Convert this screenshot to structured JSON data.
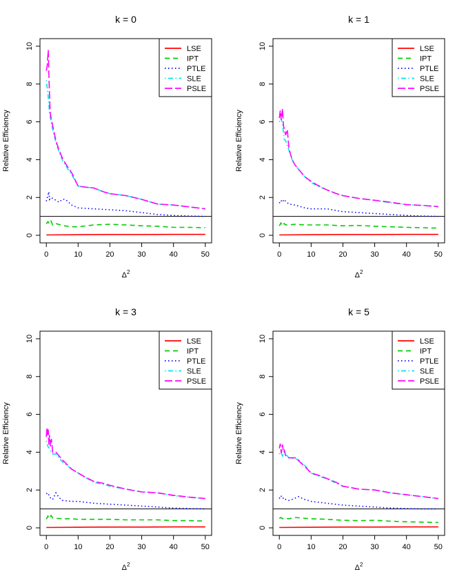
{
  "chart_data": [
    {
      "type": "line",
      "title": "k = 0",
      "xlabel": "Δ",
      "xlabel_superscript": "2",
      "ylabel": "Relative Efficiency",
      "xlim": [
        0,
        50
      ],
      "ylim": [
        0,
        10
      ],
      "xticks": [
        "0",
        "10",
        "20",
        "30",
        "40",
        "50"
      ],
      "yticks": [
        "0",
        "2",
        "4",
        "6",
        "8",
        "10"
      ],
      "reference_line_y": 1,
      "legend_position": "top-right",
      "series": [
        {
          "name": "LSE",
          "color": "#ff0000",
          "dash": "solid",
          "x": [
            0,
            10,
            20,
            30,
            40,
            50
          ],
          "y": [
            0.02,
            0.03,
            0.04,
            0.04,
            0.05,
            0.05
          ]
        },
        {
          "name": "IPT",
          "color": "#00cc00",
          "dash": "dashed",
          "x": [
            0,
            0.5,
            1,
            1.5,
            2,
            3,
            5,
            8,
            10,
            15,
            20,
            25,
            30,
            35,
            40,
            45,
            50
          ],
          "y": [
            0.6,
            0.72,
            0.6,
            0.75,
            0.55,
            0.62,
            0.52,
            0.45,
            0.45,
            0.55,
            0.58,
            0.55,
            0.5,
            0.48,
            0.42,
            0.42,
            0.4
          ]
        },
        {
          "name": "PTLE",
          "color": "#0000ff",
          "dash": "dotted",
          "x": [
            0,
            0.5,
            0.8,
            1,
            1.5,
            2,
            3,
            4,
            5,
            6,
            8,
            10,
            15,
            20,
            25,
            30,
            35,
            40,
            45,
            50
          ],
          "y": [
            1.8,
            2.1,
            2.3,
            1.9,
            2.0,
            1.95,
            1.85,
            1.75,
            1.9,
            1.9,
            1.6,
            1.45,
            1.4,
            1.35,
            1.3,
            1.2,
            1.1,
            1.05,
            1.02,
            1.0
          ]
        },
        {
          "name": "SLE",
          "color": "#00e5ee",
          "dash": "dotdash",
          "x": [
            0,
            0.5,
            1,
            1.5,
            2,
            3,
            4,
            5,
            6,
            8,
            10,
            12,
            15,
            18,
            20,
            25,
            30,
            35,
            40,
            45,
            50
          ],
          "y": [
            8.2,
            7.5,
            6.5,
            6.0,
            5.6,
            4.9,
            4.4,
            4.0,
            3.7,
            3.2,
            2.6,
            2.55,
            2.5,
            2.3,
            2.2,
            2.1,
            1.9,
            1.65,
            1.6,
            1.5,
            1.4
          ]
        },
        {
          "name": "PSLE",
          "color": "#ff00ff",
          "dash": "longdash",
          "x": [
            0,
            0.3,
            0.6,
            0.8,
            1,
            1.2,
            1.5,
            2,
            3,
            4,
            5,
            6,
            8,
            10,
            12,
            15,
            18,
            20,
            25,
            30,
            35,
            40,
            45,
            50
          ],
          "y": [
            8.7,
            9.0,
            9.8,
            8.5,
            7.5,
            6.5,
            6.2,
            5.8,
            5.0,
            4.5,
            4.1,
            3.8,
            3.3,
            2.6,
            2.55,
            2.5,
            2.3,
            2.2,
            2.1,
            1.9,
            1.65,
            1.6,
            1.5,
            1.4
          ]
        }
      ]
    },
    {
      "type": "line",
      "title": "k = 1",
      "xlabel": "Δ",
      "xlabel_superscript": "2",
      "ylabel": "Relative Efficiency",
      "xlim": [
        0,
        50
      ],
      "ylim": [
        0,
        10
      ],
      "xticks": [
        "0",
        "10",
        "20",
        "30",
        "40",
        "50"
      ],
      "yticks": [
        "0",
        "2",
        "4",
        "6",
        "8",
        "10"
      ],
      "reference_line_y": 1,
      "legend_position": "top-right",
      "series": [
        {
          "name": "LSE",
          "color": "#ff0000",
          "dash": "solid",
          "x": [
            0,
            10,
            20,
            30,
            40,
            50
          ],
          "y": [
            0.02,
            0.03,
            0.04,
            0.04,
            0.05,
            0.05
          ]
        },
        {
          "name": "IPT",
          "color": "#00cc00",
          "dash": "dashed",
          "x": [
            0,
            0.5,
            1,
            1.5,
            2,
            3,
            5,
            8,
            10,
            15,
            20,
            25,
            30,
            35,
            40,
            45,
            50
          ],
          "y": [
            0.5,
            0.65,
            0.5,
            0.62,
            0.55,
            0.55,
            0.58,
            0.55,
            0.55,
            0.55,
            0.5,
            0.52,
            0.48,
            0.45,
            0.42,
            0.4,
            0.38
          ]
        },
        {
          "name": "PTLE",
          "color": "#0000ff",
          "dash": "dotted",
          "x": [
            0,
            0.5,
            1,
            1.5,
            2,
            3,
            5,
            8,
            10,
            15,
            20,
            25,
            30,
            35,
            40,
            45,
            50
          ],
          "y": [
            1.7,
            1.85,
            1.75,
            1.9,
            1.8,
            1.65,
            1.6,
            1.45,
            1.4,
            1.4,
            1.25,
            1.2,
            1.15,
            1.1,
            1.05,
            1.02,
            1.0
          ]
        },
        {
          "name": "SLE",
          "color": "#00e5ee",
          "dash": "dotdash",
          "x": [
            0,
            0.5,
            1,
            1.5,
            2,
            3,
            4,
            5,
            6,
            8,
            10,
            12,
            15,
            18,
            20,
            25,
            30,
            35,
            40,
            45,
            50
          ],
          "y": [
            6.0,
            6.2,
            5.9,
            5.1,
            5.0,
            4.5,
            4.0,
            3.7,
            3.5,
            3.1,
            2.8,
            2.6,
            2.4,
            2.2,
            2.1,
            1.95,
            1.85,
            1.72,
            1.62,
            1.58,
            1.5
          ]
        },
        {
          "name": "PSLE",
          "color": "#ff00ff",
          "dash": "longdash",
          "x": [
            0,
            0.3,
            0.6,
            1,
            1.3,
            1.6,
            2,
            2.5,
            3,
            4,
            5,
            6,
            8,
            10,
            12,
            15,
            18,
            20,
            25,
            30,
            35,
            40,
            45,
            50
          ],
          "y": [
            6.2,
            6.6,
            6.1,
            6.7,
            5.8,
            5.6,
            5.3,
            5.6,
            4.6,
            4.0,
            3.7,
            3.5,
            3.1,
            2.85,
            2.65,
            2.4,
            2.2,
            2.1,
            1.95,
            1.85,
            1.75,
            1.62,
            1.58,
            1.52
          ]
        }
      ]
    },
    {
      "type": "line",
      "title": "k = 3",
      "xlabel": "Δ",
      "xlabel_superscript": "2",
      "ylabel": "Relative Efficiency",
      "xlim": [
        0,
        50
      ],
      "ylim": [
        0,
        10
      ],
      "xticks": [
        "0",
        "10",
        "20",
        "30",
        "40",
        "50"
      ],
      "yticks": [
        "0",
        "2",
        "4",
        "6",
        "8",
        "10"
      ],
      "reference_line_y": 1,
      "legend_position": "top-right",
      "series": [
        {
          "name": "LSE",
          "color": "#ff0000",
          "dash": "solid",
          "x": [
            0,
            10,
            20,
            30,
            40,
            50
          ],
          "y": [
            0.02,
            0.03,
            0.04,
            0.04,
            0.05,
            0.05
          ]
        },
        {
          "name": "IPT",
          "color": "#00cc00",
          "dash": "dashed",
          "x": [
            0,
            0.5,
            1,
            1.5,
            2,
            3,
            5,
            8,
            10,
            15,
            20,
            25,
            30,
            35,
            40,
            45,
            50
          ],
          "y": [
            0.45,
            0.62,
            0.5,
            0.65,
            0.52,
            0.5,
            0.48,
            0.48,
            0.45,
            0.45,
            0.45,
            0.42,
            0.42,
            0.42,
            0.38,
            0.38,
            0.36
          ]
        },
        {
          "name": "PTLE",
          "color": "#0000ff",
          "dash": "dotted",
          "x": [
            0,
            0.5,
            1,
            1.5,
            2,
            3,
            4,
            5,
            8,
            10,
            15,
            20,
            25,
            30,
            35,
            40,
            45,
            50
          ],
          "y": [
            1.8,
            1.85,
            1.65,
            1.55,
            1.5,
            1.85,
            1.6,
            1.45,
            1.4,
            1.4,
            1.3,
            1.25,
            1.2,
            1.15,
            1.1,
            1.05,
            1.02,
            1.0
          ]
        },
        {
          "name": "SLE",
          "color": "#00e5ee",
          "dash": "dotdash",
          "x": [
            0,
            0.5,
            1,
            1.5,
            2,
            3,
            5,
            8,
            10,
            12,
            15,
            18,
            20,
            25,
            30,
            35,
            40,
            45,
            50
          ],
          "y": [
            4.6,
            4.3,
            4.2,
            4.0,
            3.9,
            3.9,
            3.5,
            3.1,
            2.9,
            2.7,
            2.4,
            2.3,
            2.2,
            2.05,
            1.9,
            1.85,
            1.7,
            1.62,
            1.55
          ]
        },
        {
          "name": "PSLE",
          "color": "#ff00ff",
          "dash": "longdash",
          "x": [
            0,
            0.2,
            0.4,
            0.6,
            0.8,
            1,
            1.3,
            1.6,
            2,
            3,
            5,
            8,
            10,
            12,
            15,
            18,
            20,
            25,
            30,
            35,
            40,
            45,
            50
          ],
          "y": [
            4.8,
            5.3,
            4.9,
            5.2,
            4.4,
            4.9,
            4.3,
            4.7,
            4.0,
            4.0,
            3.6,
            3.1,
            2.9,
            2.7,
            2.45,
            2.35,
            2.25,
            2.05,
            1.9,
            1.85,
            1.72,
            1.62,
            1.55
          ]
        }
      ]
    },
    {
      "type": "line",
      "title": "k = 5",
      "xlabel": "Δ",
      "xlabel_superscript": "2",
      "ylabel": "Relative Efficiency",
      "xlim": [
        0,
        50
      ],
      "ylim": [
        0,
        10
      ],
      "xticks": [
        "0",
        "10",
        "20",
        "30",
        "40",
        "50"
      ],
      "yticks": [
        "0",
        "2",
        "4",
        "6",
        "8",
        "10"
      ],
      "reference_line_y": 1,
      "legend_position": "top-right",
      "series": [
        {
          "name": "LSE",
          "color": "#ff0000",
          "dash": "solid",
          "x": [
            0,
            10,
            20,
            30,
            40,
            50
          ],
          "y": [
            0.02,
            0.03,
            0.04,
            0.04,
            0.05,
            0.05
          ]
        },
        {
          "name": "IPT",
          "color": "#00cc00",
          "dash": "dashed",
          "x": [
            0,
            0.5,
            1,
            2,
            3,
            5,
            8,
            10,
            15,
            20,
            25,
            30,
            35,
            40,
            45,
            50
          ],
          "y": [
            0.5,
            0.55,
            0.48,
            0.5,
            0.48,
            0.55,
            0.5,
            0.48,
            0.45,
            0.4,
            0.38,
            0.4,
            0.35,
            0.32,
            0.3,
            0.28
          ]
        },
        {
          "name": "PTLE",
          "color": "#0000ff",
          "dash": "dotted",
          "x": [
            0,
            0.5,
            1,
            1.5,
            2,
            3,
            4,
            6,
            8,
            10,
            15,
            20,
            25,
            30,
            35,
            40,
            45,
            50
          ],
          "y": [
            1.55,
            1.7,
            1.55,
            1.6,
            1.5,
            1.45,
            1.5,
            1.65,
            1.5,
            1.4,
            1.3,
            1.2,
            1.15,
            1.1,
            1.05,
            1.02,
            1.0,
            1.0
          ]
        },
        {
          "name": "SLE",
          "color": "#00e5ee",
          "dash": "dotdash",
          "x": [
            0,
            0.5,
            1,
            1.5,
            2,
            3,
            5,
            6,
            8,
            10,
            12,
            15,
            18,
            20,
            25,
            30,
            35,
            40,
            45,
            50
          ],
          "y": [
            3.9,
            4.0,
            3.8,
            4.0,
            3.9,
            3.7,
            3.65,
            3.6,
            3.3,
            2.9,
            2.75,
            2.6,
            2.35,
            2.2,
            2.05,
            2.0,
            1.85,
            1.75,
            1.65,
            1.55
          ]
        },
        {
          "name": "PSLE",
          "color": "#ff00ff",
          "dash": "longdash",
          "x": [
            0,
            0.3,
            0.6,
            1,
            1.3,
            1.6,
            2,
            3,
            4,
            5,
            6,
            8,
            10,
            12,
            15,
            18,
            20,
            25,
            30,
            35,
            40,
            45,
            50
          ],
          "y": [
            4.2,
            4.45,
            3.95,
            4.4,
            4.0,
            4.1,
            3.8,
            3.7,
            3.7,
            3.7,
            3.55,
            3.25,
            2.9,
            2.8,
            2.6,
            2.4,
            2.2,
            2.05,
            2.0,
            1.85,
            1.75,
            1.65,
            1.55
          ]
        }
      ]
    }
  ]
}
